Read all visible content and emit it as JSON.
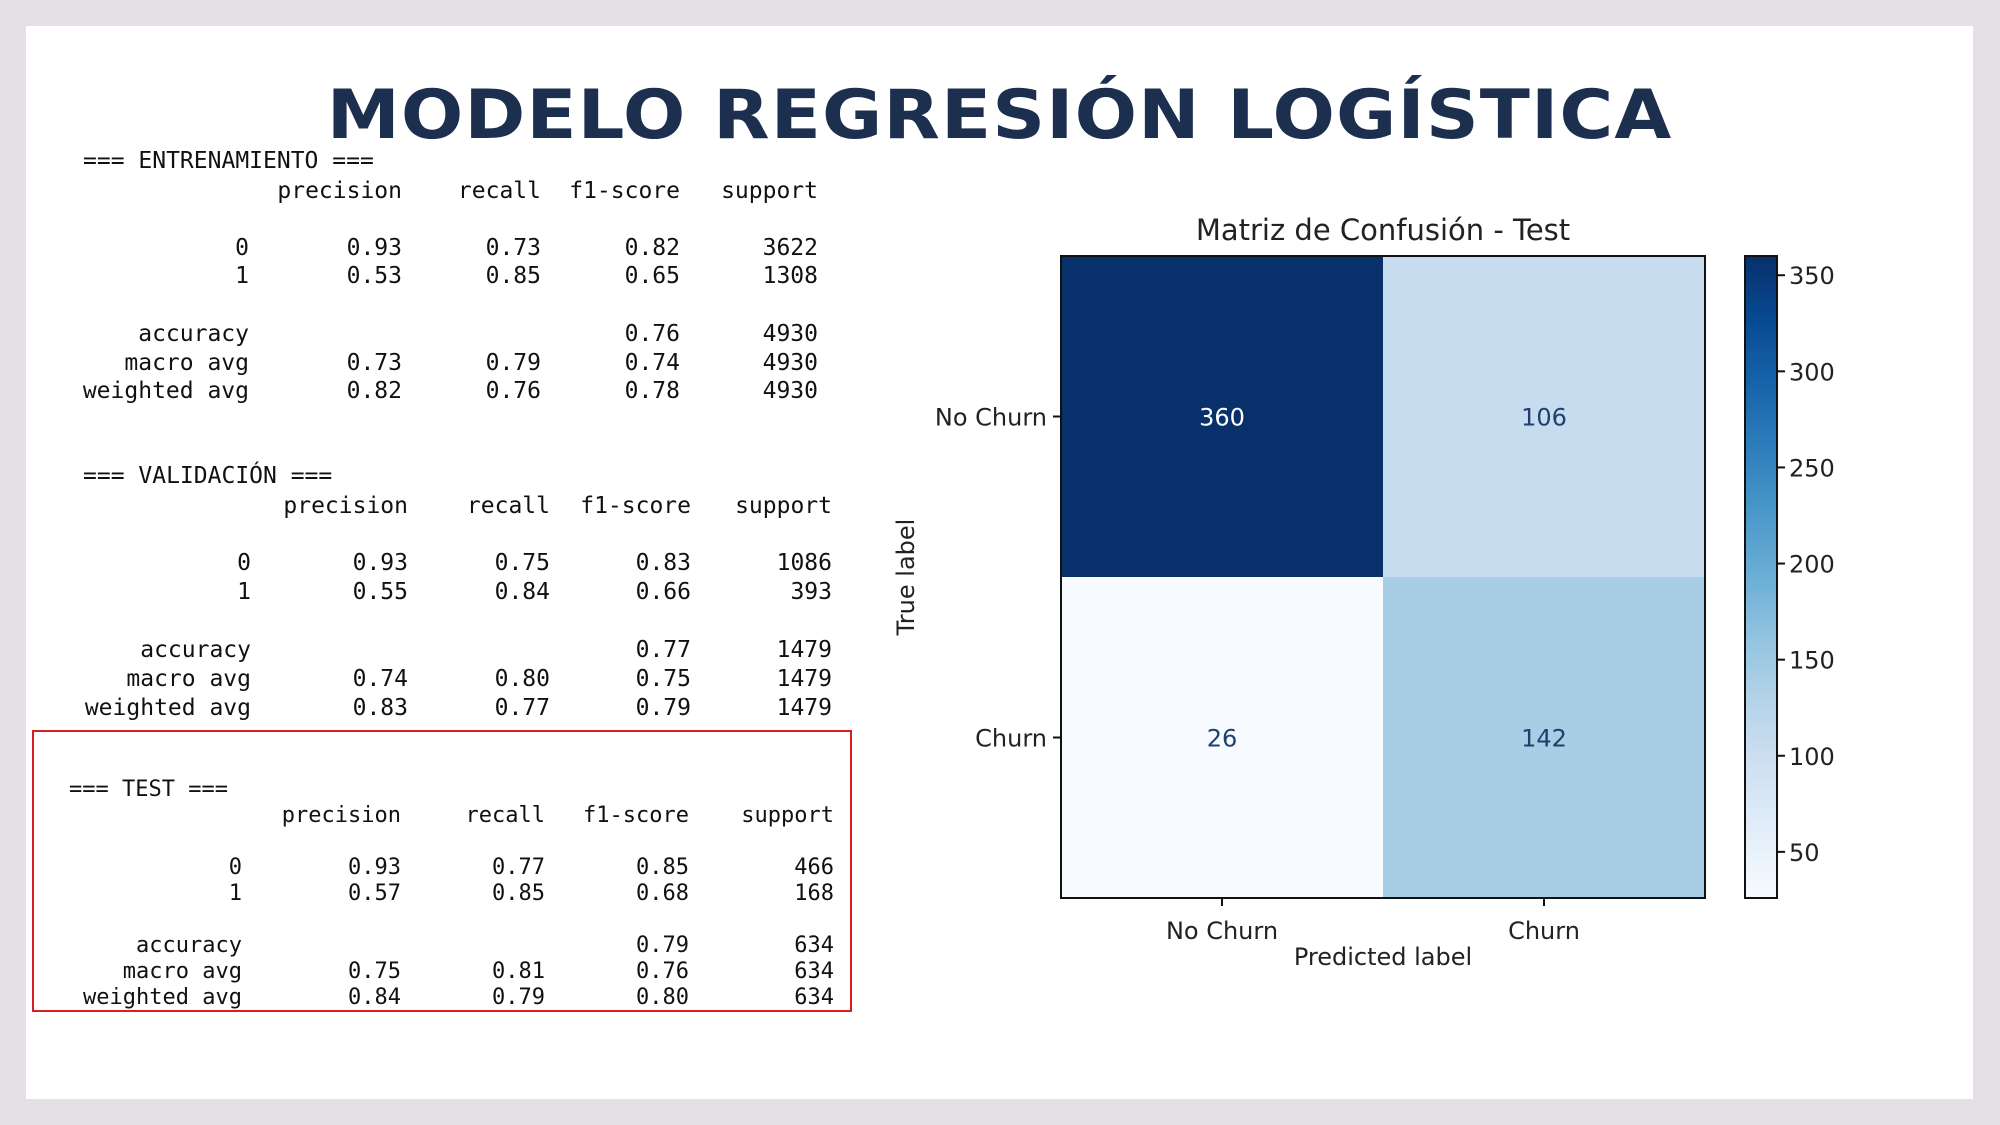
{
  "title": "MODELO REGRESIÓN LOGÍSTICA",
  "reports": {
    "train": {
      "header": "=== ENTRENAMIENTO ===",
      "columns": [
        "precision",
        "recall",
        "f1-score",
        "support"
      ],
      "rows": [
        {
          "label": "0",
          "precision": "0.93",
          "recall": "0.73",
          "f1": "0.82",
          "support": "3622"
        },
        {
          "label": "1",
          "precision": "0.53",
          "recall": "0.85",
          "f1": "0.65",
          "support": "1308"
        },
        {
          "label": "accuracy",
          "precision": "",
          "recall": "",
          "f1": "0.76",
          "support": "4930"
        },
        {
          "label": "macro avg",
          "precision": "0.73",
          "recall": "0.79",
          "f1": "0.74",
          "support": "4930"
        },
        {
          "label": "weighted avg",
          "precision": "0.82",
          "recall": "0.76",
          "f1": "0.78",
          "support": "4930"
        }
      ]
    },
    "validation": {
      "header": "=== VALIDACIÓN ===",
      "columns": [
        "precision",
        "recall",
        "f1-score",
        "support"
      ],
      "rows": [
        {
          "label": "0",
          "precision": "0.93",
          "recall": "0.75",
          "f1": "0.83",
          "support": "1086"
        },
        {
          "label": "1",
          "precision": "0.55",
          "recall": "0.84",
          "f1": "0.66",
          "support": "393"
        },
        {
          "label": "accuracy",
          "precision": "",
          "recall": "",
          "f1": "0.77",
          "support": "1479"
        },
        {
          "label": "macro avg",
          "precision": "0.74",
          "recall": "0.80",
          "f1": "0.75",
          "support": "1479"
        },
        {
          "label": "weighted avg",
          "precision": "0.83",
          "recall": "0.77",
          "f1": "0.79",
          "support": "1479"
        }
      ]
    },
    "test": {
      "header": "=== TEST ===",
      "columns": [
        "precision",
        "recall",
        "f1-score",
        "support"
      ],
      "rows": [
        {
          "label": "0",
          "precision": "0.93",
          "recall": "0.77",
          "f1": "0.85",
          "support": "466"
        },
        {
          "label": "1",
          "precision": "0.57",
          "recall": "0.85",
          "f1": "0.68",
          "support": "168"
        },
        {
          "label": "accuracy",
          "precision": "",
          "recall": "",
          "f1": "0.79",
          "support": "634"
        },
        {
          "label": "macro avg",
          "precision": "0.75",
          "recall": "0.81",
          "f1": "0.76",
          "support": "634"
        },
        {
          "label": "weighted avg",
          "precision": "0.84",
          "recall": "0.79",
          "f1": "0.80",
          "support": "634"
        }
      ],
      "highlight_color": "#d62020"
    }
  },
  "chart_data": {
    "type": "heatmap",
    "title": "Matriz de Confusión - Test",
    "xlabel": "Predicted label",
    "ylabel": "True label",
    "x_categories": [
      "No Churn",
      "Churn"
    ],
    "y_categories": [
      "No Churn",
      "Churn"
    ],
    "values": [
      [
        360,
        106
      ],
      [
        26,
        142
      ]
    ],
    "colormap": "Blues",
    "color_range": [
      26,
      360
    ],
    "colorbar_ticks": [
      50,
      100,
      150,
      200,
      250,
      300,
      350
    ]
  }
}
